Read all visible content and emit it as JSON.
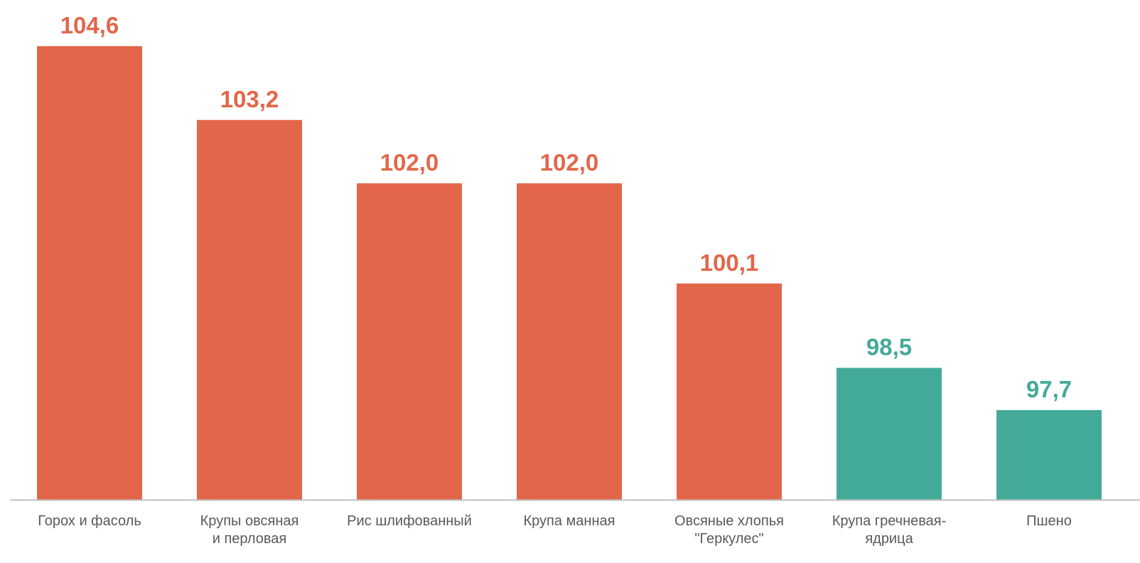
{
  "chart_data": {
    "type": "bar",
    "categories": [
      [
        "Горох и фасоль"
      ],
      [
        "Крупы овсяная",
        "и перловая"
      ],
      [
        "Рис шлифованный"
      ],
      [
        "Крупа манная"
      ],
      [
        "Овсяные хлопья",
        "\"Геркулес\""
      ],
      [
        "Крупа гречневая-",
        "ядрица"
      ],
      [
        "Пшено"
      ]
    ],
    "values": [
      104.6,
      103.2,
      102.0,
      102.0,
      100.1,
      98.5,
      97.7
    ],
    "value_labels": [
      "104,6",
      "103,2",
      "102,0",
      "102,0",
      "100,1",
      "98,5",
      "97,7"
    ],
    "baseline": 96.0,
    "highlight_threshold": 100,
    "colors": {
      "above": "#E2674A",
      "below": "#44AA98",
      "axis": "#BFBFBF",
      "label": "#595959"
    },
    "title": "",
    "xlabel": "",
    "ylabel": "",
    "grid": false,
    "legend": "none"
  }
}
